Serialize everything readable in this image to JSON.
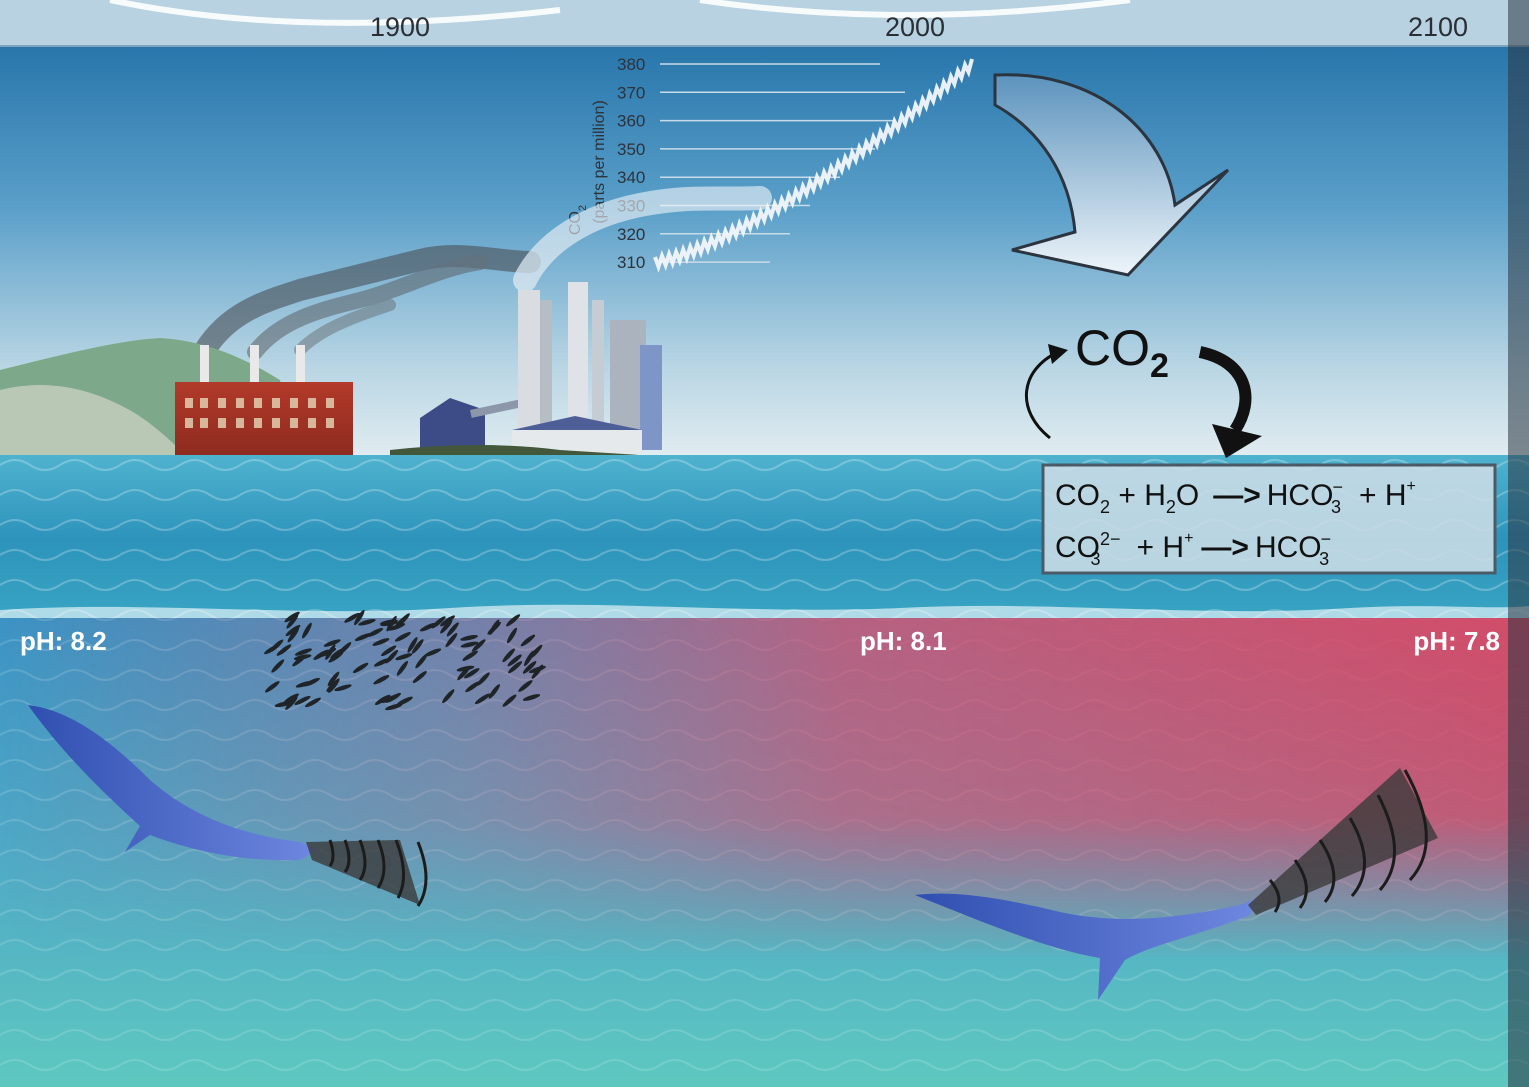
{
  "timeline": {
    "years": [
      "1900",
      "2000",
      "2100"
    ]
  },
  "co2_chart": {
    "ylabel_line1": "CO",
    "ylabel_sub": "2",
    "ylabel_line2": "(parts per million)",
    "ticks": [
      "380",
      "370",
      "360",
      "350",
      "340",
      "330",
      "320",
      "310"
    ],
    "colors": {
      "curve": "#f2f6fa",
      "gridline": "#c9dbe8"
    }
  },
  "labels": {
    "co2_molecule": "CO",
    "co2_sub": "2"
  },
  "equations": {
    "eq1": {
      "a": "CO",
      "a_sub": "2",
      "plus1": " + H",
      "h_sub": "2",
      "o": "O",
      "arrow": "—>",
      "b": "HCO",
      "b_sub": "3",
      "b_sup": "−",
      "c": "+ H",
      "c_sup": "+"
    },
    "eq2": {
      "a": "CO",
      "a_sub": "3",
      "a_sup": "2−",
      "plus": "+ H",
      "plus_sup": "+",
      "arrow": "—>",
      "b": "HCO",
      "b_sub": "3",
      "b_sup": "−"
    }
  },
  "ph_levels": [
    "pH: 8.2",
    "pH: 8.1",
    "pH: 7.8"
  ],
  "colors": {
    "sky_top": "#1d6fa8",
    "sky_bottom": "#dbe9ef",
    "sea_surface": "#2f9fc1",
    "acid_red": "#e0506a",
    "water_teal": "#48b6b4"
  },
  "icons": [
    "factory-icon",
    "power-plant-icon",
    "smoke-icon",
    "down-arrow-icon",
    "cycle-arrow-icon",
    "fish-school-icon",
    "whale-icon",
    "sound-wave-icon"
  ]
}
